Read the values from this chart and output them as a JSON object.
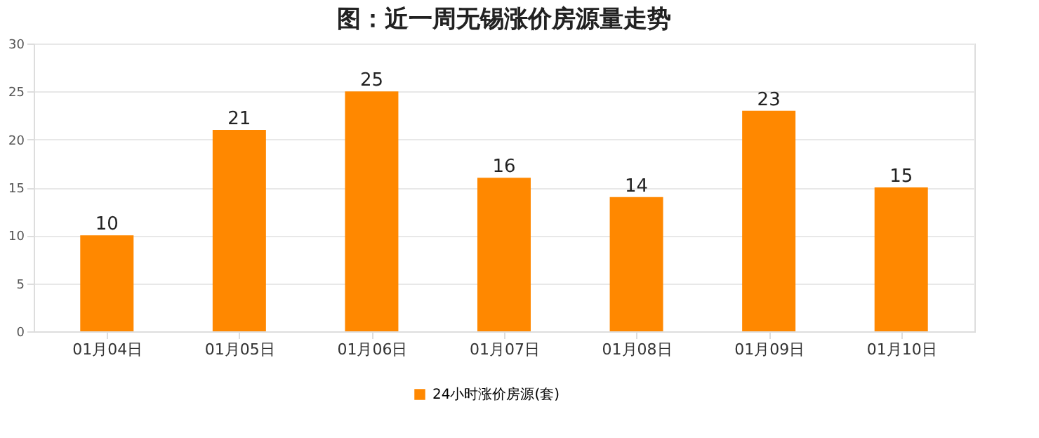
{
  "chart_data": {
    "type": "bar",
    "title": "图：近一周无锡涨价房源量走势",
    "categories": [
      "01月04日",
      "01月05日",
      "01月06日",
      "01月07日",
      "01月08日",
      "01月09日",
      "01月10日"
    ],
    "series": [
      {
        "name": "24小时涨价房源(套)",
        "color": "#ff8800",
        "values": [
          10,
          21,
          25,
          16,
          14,
          23,
          15
        ]
      }
    ],
    "ylim": [
      0,
      30
    ],
    "yticks": [
      0,
      5,
      10,
      15,
      20,
      25,
      30
    ],
    "grid": "y",
    "legend": "bottom",
    "data_labels": true
  }
}
